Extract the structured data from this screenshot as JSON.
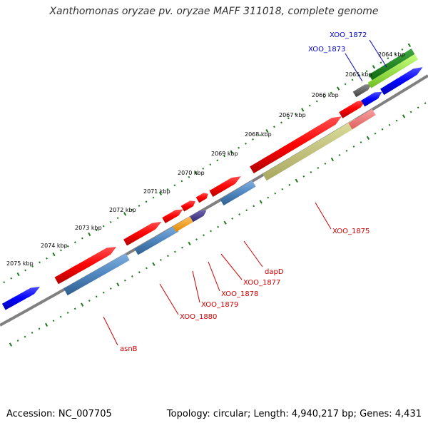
{
  "title": "Xanthomonas oryzae pv. oryzae MAFF 311018, complete genome",
  "accession_text": "Accession: NC_007705",
  "topology_text": "Topology: circular; Length: 4,940,217 bp; Genes: 4,431",
  "ticks": [
    "2064 kbp",
    "2065 kbp",
    "2066 kbp",
    "2067 kbp",
    "2068 kbp",
    "2069 kbp",
    "2070 kbp",
    "2071 kbp",
    "2072 kbp",
    "2073 kbp",
    "2074 kbp",
    "2075 kbp"
  ],
  "gene_labels": [
    {
      "name": "XOO_1872",
      "color": "#0000cc"
    },
    {
      "name": "XOO_1873",
      "color": "#0000cc"
    },
    {
      "name": "XOO_1875",
      "color": "#cc0000"
    },
    {
      "name": "dapD",
      "color": "#cc0000"
    },
    {
      "name": "XOO_1877",
      "color": "#cc0000"
    },
    {
      "name": "XOO_1878",
      "color": "#cc0000"
    },
    {
      "name": "XOO_1879",
      "color": "#cc0000"
    },
    {
      "name": "XOO_1880",
      "color": "#cc0000"
    },
    {
      "name": "asnB",
      "color": "#cc0000"
    }
  ],
  "colors": {
    "backbone": "#808080",
    "ticks": "#1f7a1f",
    "forward_gene": "#ff0000",
    "forward_rna": "#f28080",
    "reverse_gene": "#4f86bf",
    "blue_gene": "#0000ff",
    "olive_gene": "#c2c27a",
    "green_gene": "#1f8a1f",
    "lime_gene": "#90ee40",
    "gray_gene": "#666666",
    "orange_gene": "#ffa500",
    "purple_gene": "#4b3f8f"
  }
}
